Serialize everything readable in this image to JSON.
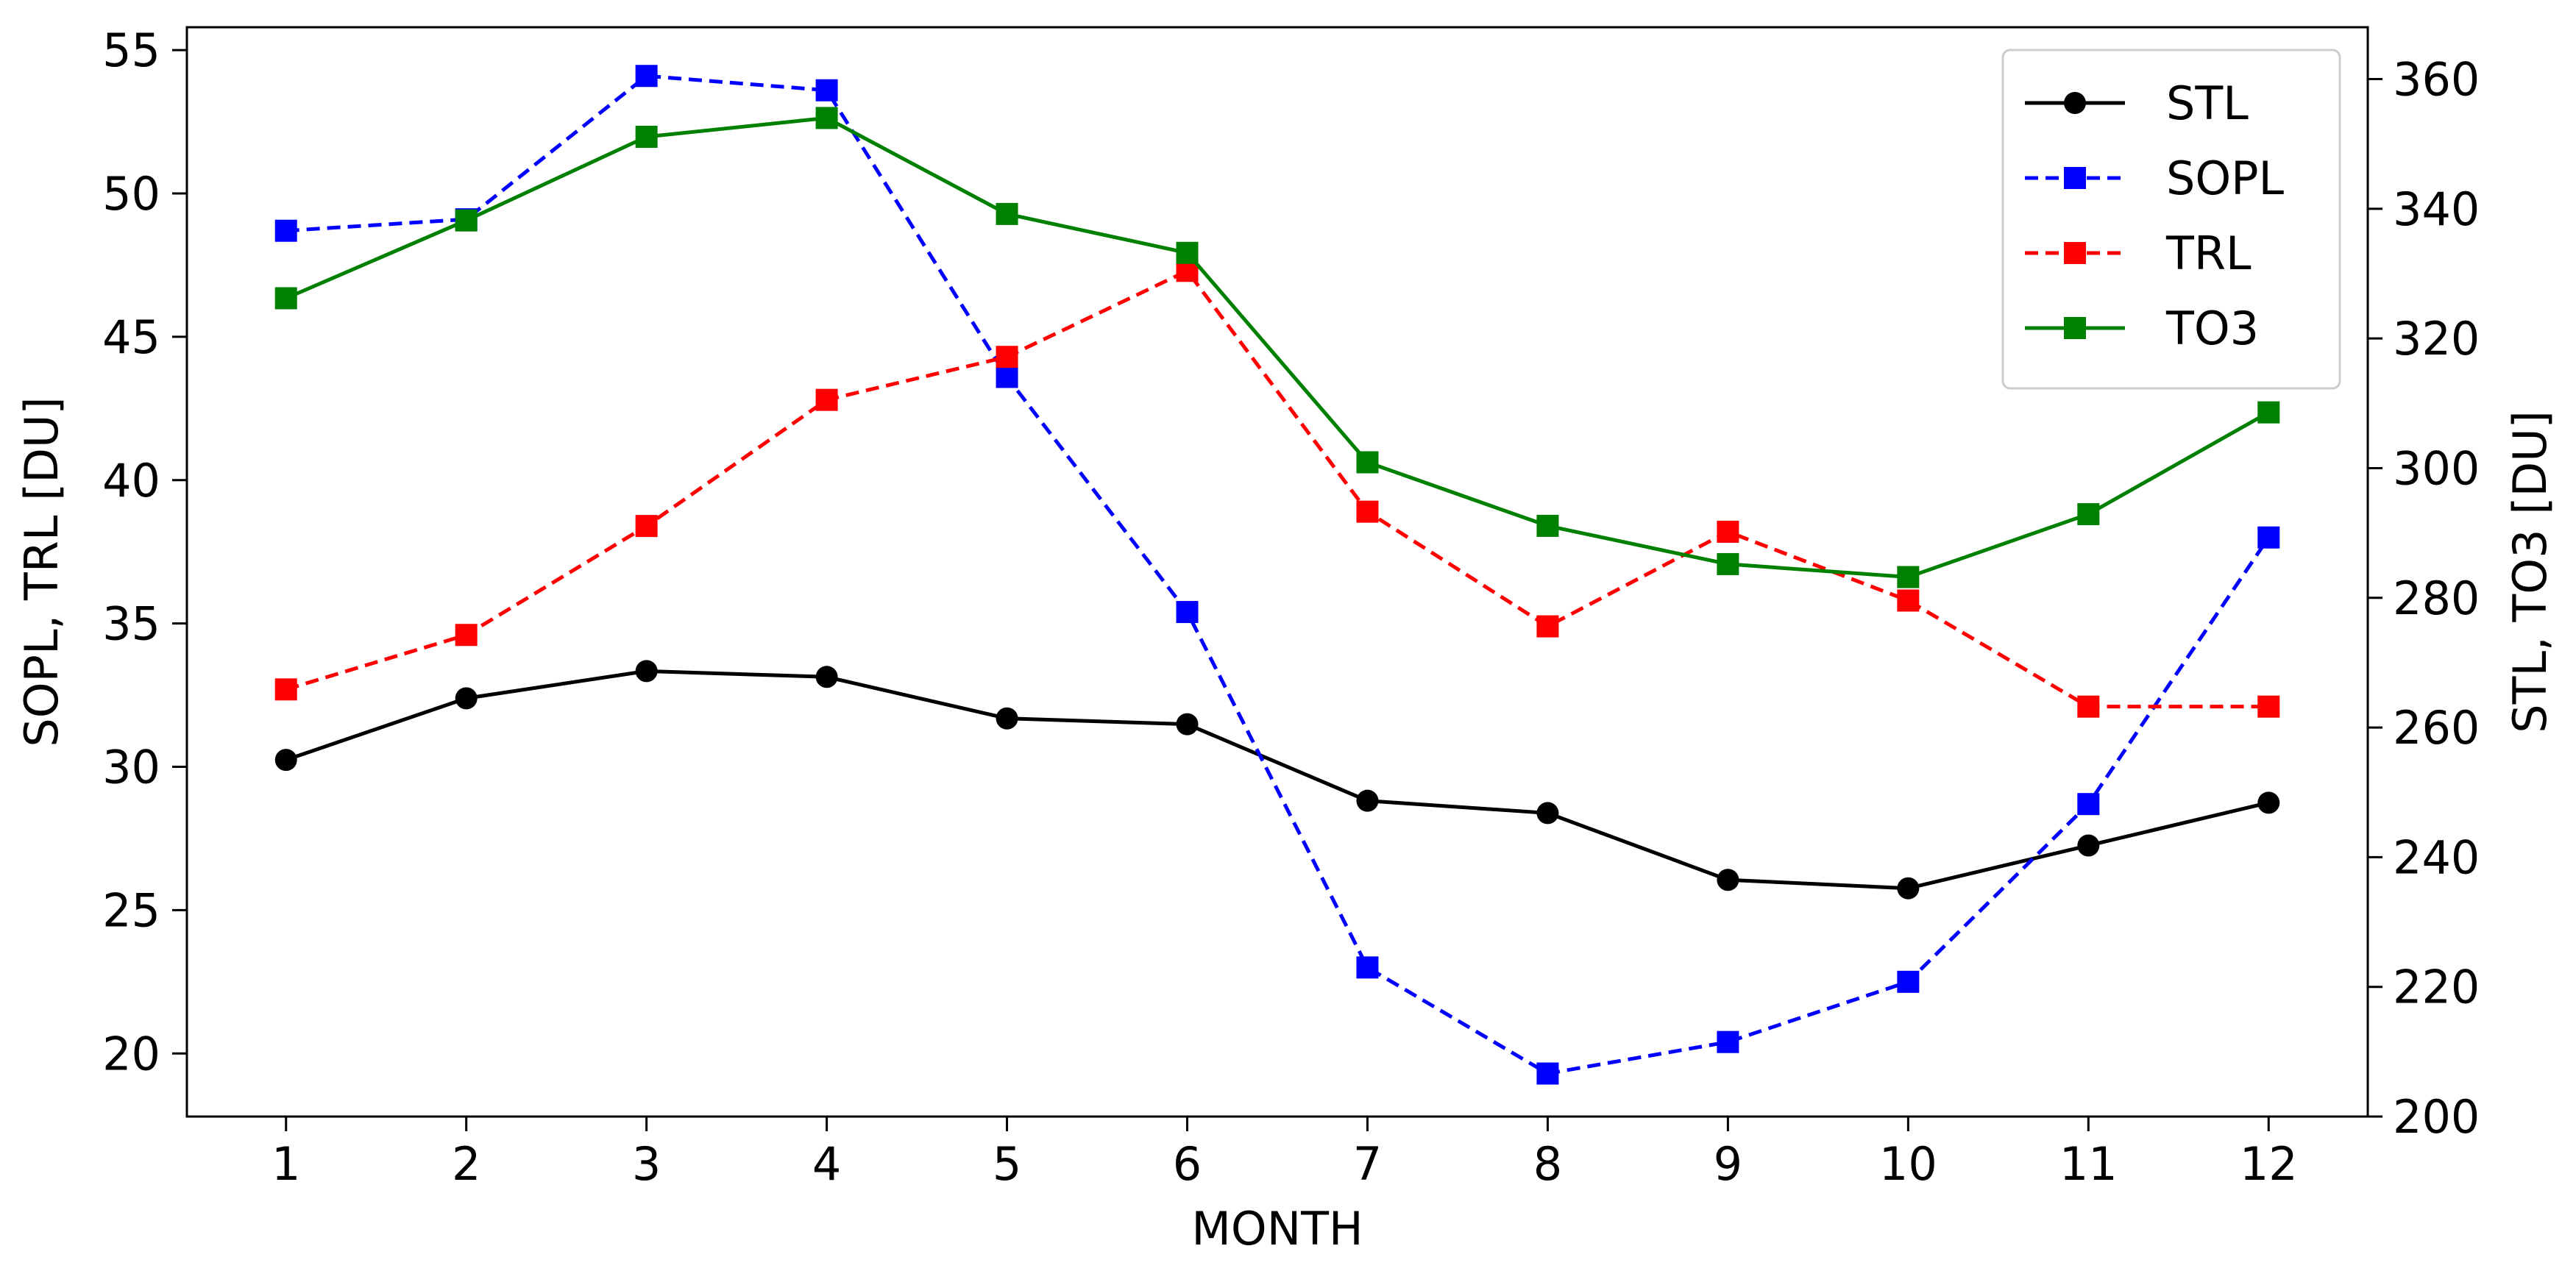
{
  "chart_data": {
    "type": "line",
    "xlabel": "MONTH",
    "ylabel_left": "SOPL, TRL [DU]",
    "ylabel_right": "STL, TO3 [DU]",
    "x": [
      1,
      2,
      3,
      4,
      5,
      6,
      7,
      8,
      9,
      10,
      11,
      12
    ],
    "x_ticks": [
      "1",
      "2",
      "3",
      "4",
      "5",
      "6",
      "7",
      "8",
      "9",
      "10",
      "11",
      "12"
    ],
    "xlim": [
      0.45,
      12.55
    ],
    "ylim_left": [
      17.8,
      55.8
    ],
    "ylim_right": [
      200,
      368
    ],
    "left_ticks": [
      20,
      25,
      30,
      35,
      40,
      45,
      50,
      55
    ],
    "right_ticks": [
      200,
      220,
      240,
      260,
      280,
      300,
      320,
      340,
      360
    ],
    "legend_position": "top-right",
    "series": [
      {
        "name": "STL",
        "axis": "right",
        "color": "#000000",
        "style": "solid",
        "marker": "circle",
        "values": [
          255,
          264.5,
          268.7,
          267.8,
          261.4,
          260.5,
          248.7,
          246.8,
          236.5,
          235.2,
          241.8,
          248.4
        ]
      },
      {
        "name": "SOPL",
        "axis": "left",
        "color": "#0000ff",
        "style": "dashed",
        "marker": "square",
        "values": [
          48.7,
          49.1,
          54.1,
          53.6,
          43.6,
          35.4,
          23,
          19.3,
          20.4,
          22.5,
          28.7,
          38
        ]
      },
      {
        "name": "TRL",
        "axis": "left",
        "color": "#ff0000",
        "style": "dashed",
        "marker": "square",
        "values": [
          32.7,
          34.6,
          38.4,
          42.8,
          44.3,
          47.3,
          38.9,
          34.9,
          38.2,
          35.8,
          32.1,
          32.1
        ]
      },
      {
        "name": "TO3",
        "axis": "right",
        "color": "#008000",
        "style": "solid",
        "marker": "square",
        "values": [
          326.2,
          338.2,
          351.1,
          354,
          339.2,
          333.2,
          300.9,
          291.1,
          285.2,
          283.2,
          292.9,
          308.6
        ]
      }
    ]
  }
}
